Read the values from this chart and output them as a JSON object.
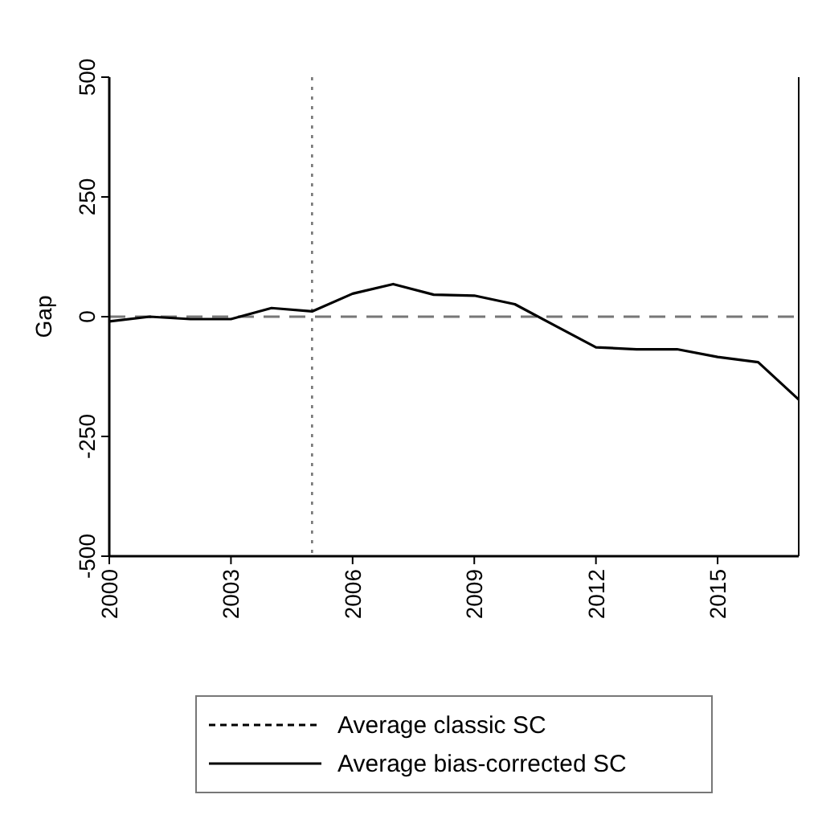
{
  "chart_data": {
    "type": "line",
    "ylabel": "Gap",
    "x": [
      2000,
      2001,
      2002,
      2003,
      2004,
      2005,
      2006,
      2007,
      2008,
      2009,
      2010,
      2011,
      2012,
      2013,
      2014,
      2015,
      2016,
      2017
    ],
    "series": [
      {
        "name": "Average classic SC",
        "color": "#000000",
        "line_style": "dashed",
        "values": [
          null,
          null,
          null,
          null,
          null,
          null,
          null,
          null,
          null,
          null,
          null,
          null,
          null,
          null,
          null,
          null,
          null,
          null
        ]
      },
      {
        "name": "Average bias-corrected SC",
        "color": "#000000",
        "line_style": "solid",
        "values": [
          -10,
          0,
          -5,
          -5,
          18,
          11,
          48,
          68,
          46,
          44,
          26,
          -19,
          -64,
          -68,
          -68,
          -84,
          -95,
          -173
        ]
      }
    ],
    "xlim": [
      2000,
      2017
    ],
    "xticks": [
      2000,
      2003,
      2006,
      2009,
      2012,
      2015
    ],
    "ylim": [
      -500,
      500
    ],
    "yticks": [
      -500,
      -250,
      0,
      250,
      500
    ],
    "ref_lines": [
      {
        "axis": "y",
        "value": 0,
        "color": "#777777",
        "line_style": "dashed"
      },
      {
        "axis": "x",
        "value": 2005,
        "color": "#777777",
        "line_style": "dotted"
      }
    ],
    "legend": "bottom",
    "grid": false
  }
}
